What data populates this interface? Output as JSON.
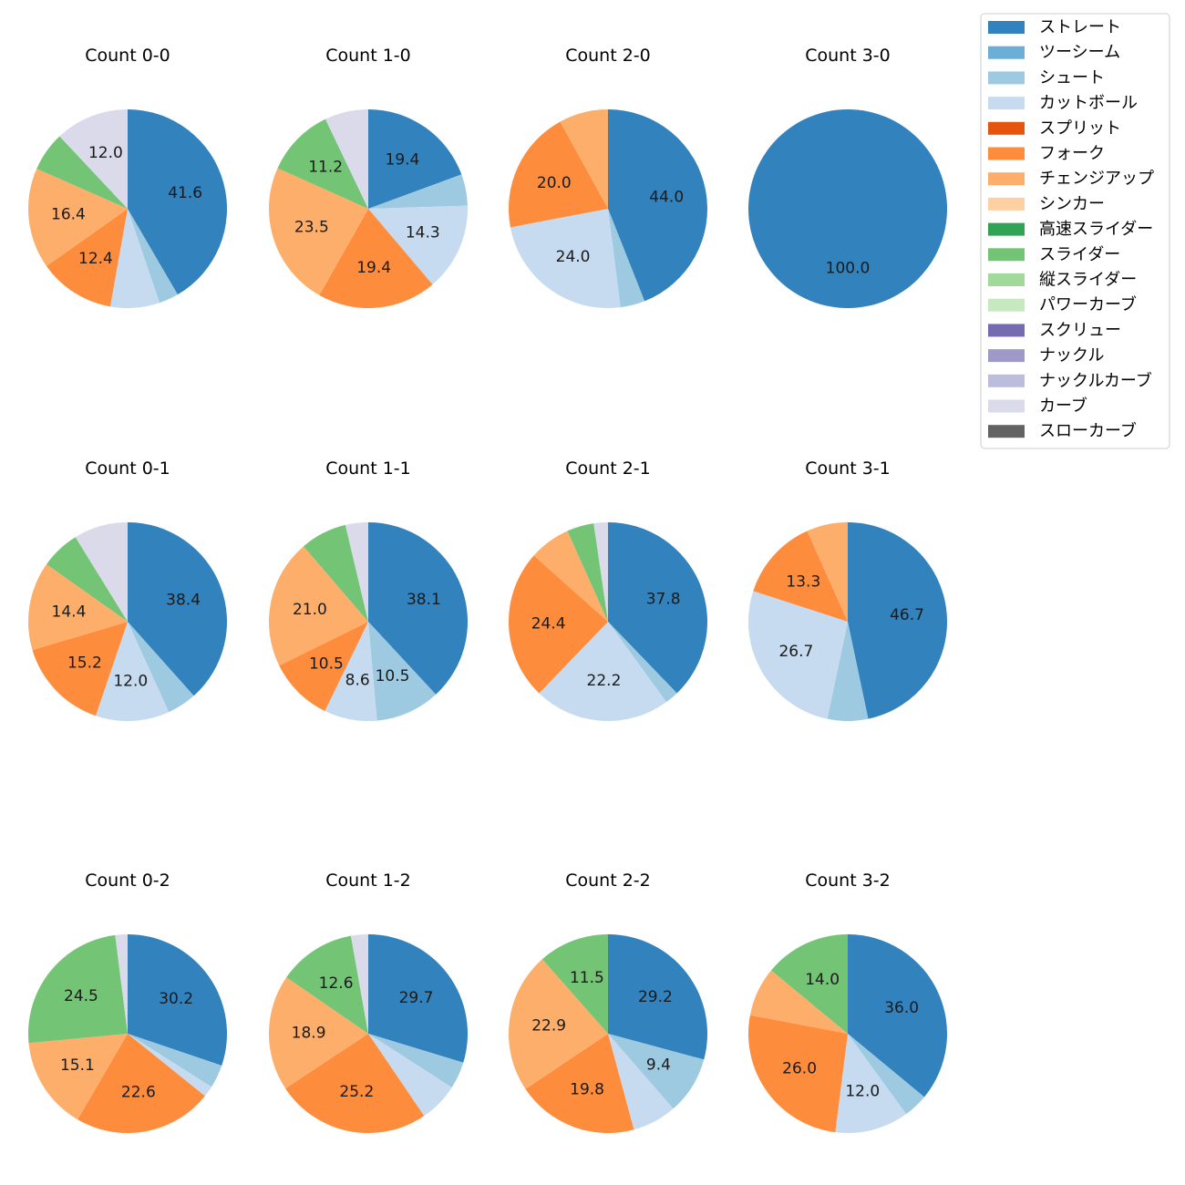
{
  "legend": {
    "entries": [
      {
        "name": "ストレート",
        "color": "#3182bd"
      },
      {
        "name": "ツーシーム",
        "color": "#6baed6"
      },
      {
        "name": "シュート",
        "color": "#9ecae1"
      },
      {
        "name": "カットボール",
        "color": "#c6dbef"
      },
      {
        "name": "スプリット",
        "color": "#e6550d"
      },
      {
        "name": "フォーク",
        "color": "#fd8d3c"
      },
      {
        "name": "チェンジアップ",
        "color": "#fdae6b"
      },
      {
        "name": "シンカー",
        "color": "#fdd0a2"
      },
      {
        "name": "高速スライダー",
        "color": "#31a354"
      },
      {
        "name": "スライダー",
        "color": "#74c476"
      },
      {
        "name": "縦スライダー",
        "color": "#a1d99b"
      },
      {
        "name": "パワーカーブ",
        "color": "#c7e9c0"
      },
      {
        "name": "スクリュー",
        "color": "#756bb1"
      },
      {
        "name": "ナックル",
        "color": "#9e9ac8"
      },
      {
        "name": "ナックルカーブ",
        "color": "#bcbddc"
      },
      {
        "name": "カーブ",
        "color": "#dadaeb"
      },
      {
        "name": "スローカーブ",
        "color": "#636363"
      }
    ]
  },
  "chart_data": [
    {
      "type": "pie",
      "title": "Count 0-0",
      "slices": [
        {
          "pitch": "ストレート",
          "value": 41.6,
          "label": "41.6"
        },
        {
          "pitch": "シュート",
          "value": 3.2
        },
        {
          "pitch": "カットボール",
          "value": 8.0
        },
        {
          "pitch": "フォーク",
          "value": 12.4,
          "label": "12.4"
        },
        {
          "pitch": "チェンジアップ",
          "value": 16.4,
          "label": "16.4"
        },
        {
          "pitch": "スライダー",
          "value": 6.4
        },
        {
          "pitch": "カーブ",
          "value": 12.0,
          "label": "12.0"
        }
      ]
    },
    {
      "type": "pie",
      "title": "Count 1-0",
      "slices": [
        {
          "pitch": "ストレート",
          "value": 19.4,
          "label": "19.4"
        },
        {
          "pitch": "シュート",
          "value": 5.1
        },
        {
          "pitch": "カットボール",
          "value": 14.3,
          "label": "14.3"
        },
        {
          "pitch": "フォーク",
          "value": 19.4,
          "label": "19.4"
        },
        {
          "pitch": "チェンジアップ",
          "value": 23.5,
          "label": "23.5"
        },
        {
          "pitch": "スライダー",
          "value": 11.2,
          "label": "11.2"
        },
        {
          "pitch": "カーブ",
          "value": 7.1
        }
      ]
    },
    {
      "type": "pie",
      "title": "Count 2-0",
      "slices": [
        {
          "pitch": "ストレート",
          "value": 44.0,
          "label": "44.0"
        },
        {
          "pitch": "シュート",
          "value": 4.0
        },
        {
          "pitch": "カットボール",
          "value": 24.0,
          "label": "24.0"
        },
        {
          "pitch": "フォーク",
          "value": 20.0,
          "label": "20.0"
        },
        {
          "pitch": "チェンジアップ",
          "value": 8.0
        }
      ]
    },
    {
      "type": "pie",
      "title": "Count 3-0",
      "slices": [
        {
          "pitch": "ストレート",
          "value": 100.0,
          "label": "100.0"
        }
      ]
    },
    {
      "type": "pie",
      "title": "Count 0-1",
      "slices": [
        {
          "pitch": "ストレート",
          "value": 38.4,
          "label": "38.4"
        },
        {
          "pitch": "シュート",
          "value": 4.8
        },
        {
          "pitch": "カットボール",
          "value": 12.0,
          "label": "12.0"
        },
        {
          "pitch": "フォーク",
          "value": 15.2,
          "label": "15.2"
        },
        {
          "pitch": "チェンジアップ",
          "value": 14.4,
          "label": "14.4"
        },
        {
          "pitch": "スライダー",
          "value": 6.4
        },
        {
          "pitch": "カーブ",
          "value": 8.8
        }
      ]
    },
    {
      "type": "pie",
      "title": "Count 1-1",
      "slices": [
        {
          "pitch": "ストレート",
          "value": 38.1,
          "label": "38.1"
        },
        {
          "pitch": "シュート",
          "value": 10.5,
          "label": "10.5"
        },
        {
          "pitch": "カットボール",
          "value": 8.6,
          "label": "8.6"
        },
        {
          "pitch": "フォーク",
          "value": 10.5,
          "label": "10.5"
        },
        {
          "pitch": "チェンジアップ",
          "value": 21.0,
          "label": "21.0"
        },
        {
          "pitch": "スライダー",
          "value": 7.6
        },
        {
          "pitch": "カーブ",
          "value": 3.7
        }
      ]
    },
    {
      "type": "pie",
      "title": "Count 2-1",
      "slices": [
        {
          "pitch": "ストレート",
          "value": 37.8,
          "label": "37.8"
        },
        {
          "pitch": "シュート",
          "value": 2.2
        },
        {
          "pitch": "カットボール",
          "value": 22.2,
          "label": "22.2"
        },
        {
          "pitch": "フォーク",
          "value": 24.4,
          "label": "24.4"
        },
        {
          "pitch": "チェンジアップ",
          "value": 6.7
        },
        {
          "pitch": "スライダー",
          "value": 4.4
        },
        {
          "pitch": "カーブ",
          "value": 2.3
        }
      ]
    },
    {
      "type": "pie",
      "title": "Count 3-1",
      "slices": [
        {
          "pitch": "ストレート",
          "value": 46.7,
          "label": "46.7"
        },
        {
          "pitch": "シュート",
          "value": 6.6
        },
        {
          "pitch": "カットボール",
          "value": 26.7,
          "label": "26.7"
        },
        {
          "pitch": "フォーク",
          "value": 13.3,
          "label": "13.3"
        },
        {
          "pitch": "チェンジアップ",
          "value": 6.7
        }
      ]
    },
    {
      "type": "pie",
      "title": "Count 0-2",
      "slices": [
        {
          "pitch": "ストレート",
          "value": 30.2,
          "label": "30.2"
        },
        {
          "pitch": "シュート",
          "value": 3.8
        },
        {
          "pitch": "カットボール",
          "value": 1.8
        },
        {
          "pitch": "フォーク",
          "value": 22.6,
          "label": "22.6"
        },
        {
          "pitch": "チェンジアップ",
          "value": 15.1,
          "label": "15.1"
        },
        {
          "pitch": "スライダー",
          "value": 24.5,
          "label": "24.5"
        },
        {
          "pitch": "カーブ",
          "value": 2.0
        }
      ]
    },
    {
      "type": "pie",
      "title": "Count 1-2",
      "slices": [
        {
          "pitch": "ストレート",
          "value": 29.7,
          "label": "29.7"
        },
        {
          "pitch": "シュート",
          "value": 4.4
        },
        {
          "pitch": "カットボール",
          "value": 6.4
        },
        {
          "pitch": "フォーク",
          "value": 25.2,
          "label": "25.2"
        },
        {
          "pitch": "チェンジアップ",
          "value": 18.9,
          "label": "18.9"
        },
        {
          "pitch": "スライダー",
          "value": 12.6,
          "label": "12.6"
        },
        {
          "pitch": "カーブ",
          "value": 2.8
        }
      ]
    },
    {
      "type": "pie",
      "title": "Count 2-2",
      "slices": [
        {
          "pitch": "ストレート",
          "value": 29.2,
          "label": "29.2"
        },
        {
          "pitch": "シュート",
          "value": 9.4,
          "label": "9.4"
        },
        {
          "pitch": "カットボール",
          "value": 7.2
        },
        {
          "pitch": "フォーク",
          "value": 19.8,
          "label": "19.8"
        },
        {
          "pitch": "チェンジアップ",
          "value": 22.9,
          "label": "22.9"
        },
        {
          "pitch": "スライダー",
          "value": 11.5,
          "label": "11.5"
        }
      ]
    },
    {
      "type": "pie",
      "title": "Count 3-2",
      "slices": [
        {
          "pitch": "ストレート",
          "value": 36.0,
          "label": "36.0"
        },
        {
          "pitch": "シュート",
          "value": 4.0
        },
        {
          "pitch": "カットボール",
          "value": 12.0,
          "label": "12.0"
        },
        {
          "pitch": "フォーク",
          "value": 26.0,
          "label": "26.0"
        },
        {
          "pitch": "チェンジアップ",
          "value": 8.0
        },
        {
          "pitch": "スライダー",
          "value": 14.0,
          "label": "14.0"
        }
      ]
    }
  ]
}
